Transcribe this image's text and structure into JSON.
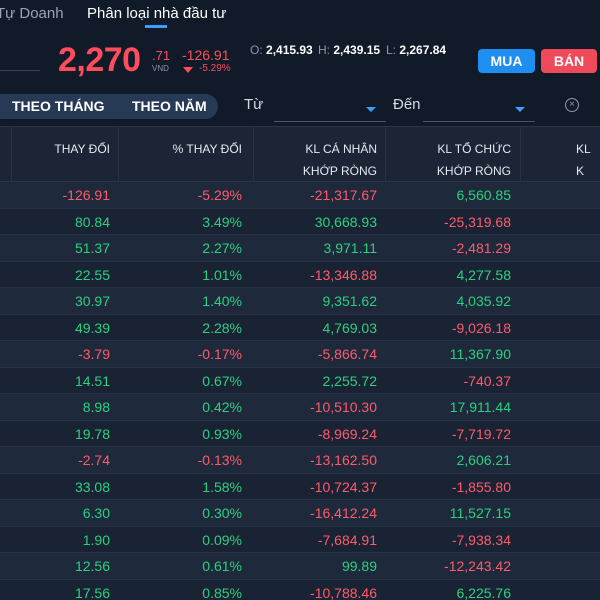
{
  "tabs": [
    "Tự Doanh",
    "Phân loại nhà đầu tư"
  ],
  "price": {
    "value": "2,270",
    "decimal": ".71",
    "unit": "VND",
    "change": "-126.91",
    "change_pct": "-5.29%",
    "open_label": "O:",
    "open": "2,415.93",
    "high_label": "H:",
    "high": "2,439.15",
    "low_label": "L:",
    "low": "2,267.84"
  },
  "actions": {
    "buy": "MUA",
    "sell": "BÁN"
  },
  "filters": {
    "by_month": "THEO THÁNG",
    "by_year": "THEO NĂM",
    "from_label": "Từ",
    "to_label": "Đến"
  },
  "columns": {
    "change": "THAY ĐỔI",
    "pct_change": "% THAY ĐỔI",
    "individual_1": "KL CÁ NHÂN",
    "individual_2": "KHỚP RÒNG",
    "institution_1": "KL TỔ CHỨC",
    "institution_2": "KHỚP RÒNG",
    "next_1": "KL",
    "next_2": "K"
  },
  "colors": {
    "up": "#2bd17e",
    "down": "#ff5b6a",
    "accent": "#1e8ef0"
  },
  "rows": [
    {
      "change": "-126.91",
      "pct": "-5.29%",
      "individual": "-21,317.67",
      "institution": "6,560.85"
    },
    {
      "change": "80.84",
      "pct": "3.49%",
      "individual": "30,668.93",
      "institution": "-25,319.68"
    },
    {
      "change": "51.37",
      "pct": "2.27%",
      "individual": "3,971.11",
      "institution": "-2,481.29"
    },
    {
      "change": "22.55",
      "pct": "1.01%",
      "individual": "-13,346.88",
      "institution": "4,277.58"
    },
    {
      "change": "30.97",
      "pct": "1.40%",
      "individual": "9,351.62",
      "institution": "4,035.92"
    },
    {
      "change": "49.39",
      "pct": "2.28%",
      "individual": "4,769.03",
      "institution": "-9,026.18"
    },
    {
      "change": "-3.79",
      "pct": "-0.17%",
      "individual": "-5,866.74",
      "institution": "11,367.90"
    },
    {
      "change": "14.51",
      "pct": "0.67%",
      "individual": "2,255.72",
      "institution": "-740.37"
    },
    {
      "change": "8.98",
      "pct": "0.42%",
      "individual": "-10,510.30",
      "institution": "17,911.44"
    },
    {
      "change": "19.78",
      "pct": "0.93%",
      "individual": "-8,969.24",
      "institution": "-7,719.72"
    },
    {
      "change": "-2.74",
      "pct": "-0.13%",
      "individual": "-13,162.50",
      "institution": "2,606.21"
    },
    {
      "change": "33.08",
      "pct": "1.58%",
      "individual": "-10,724.37",
      "institution": "-1,855.80"
    },
    {
      "change": "6.30",
      "pct": "0.30%",
      "individual": "-16,412.24",
      "institution": "11,527.15"
    },
    {
      "change": "1.90",
      "pct": "0.09%",
      "individual": "-7,684.91",
      "institution": "-7,938.34"
    },
    {
      "change": "12.56",
      "pct": "0.61%",
      "individual": "99.89",
      "institution": "-12,243.42"
    },
    {
      "change": "17.56",
      "pct": "0.85%",
      "individual": "-10,788.46",
      "institution": "6,225.76"
    }
  ]
}
